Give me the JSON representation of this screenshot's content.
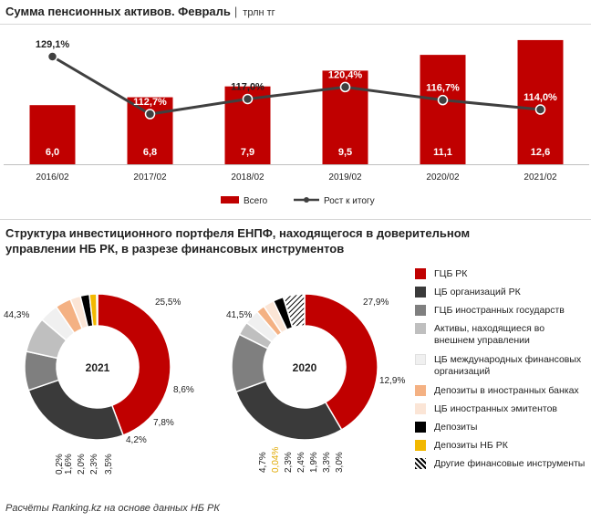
{
  "header": {
    "title": "Сумма пенсионных активов. Февраль",
    "separator": "|",
    "unit": "трлн тг"
  },
  "section2": {
    "title": "Структура инвестиционного портфеля ЕНПФ, находящегося в доверительном управлении НБ РК, в разрезе финансовых инструментов"
  },
  "footnote": "Расчёты Ranking.kz на основе данных НБ РК",
  "colors": {
    "bar": "#c00000",
    "line": "#404040",
    "gray_dark": "#3a3a3a",
    "gray_mid": "#7f7f7f",
    "gray_light": "#bfbfbf",
    "gray_faint": "#f0f0f0",
    "peach": "#f4b183",
    "peach_light": "#fbe5d6",
    "black": "#000000",
    "gold": "#f2b800"
  },
  "chart_data": [
    {
      "type": "bar",
      "categories": [
        "2016/02",
        "2017/02",
        "2018/02",
        "2019/02",
        "2020/02",
        "2021/02"
      ],
      "series": [
        {
          "name": "Всего",
          "type": "bar",
          "values": [
            6.0,
            6.8,
            7.9,
            9.5,
            11.1,
            12.6
          ],
          "labels": [
            "6,0",
            "6,8",
            "7,9",
            "9,5",
            "11,1",
            "12,6"
          ]
        },
        {
          "name": "Рост к итогу",
          "type": "line",
          "values": [
            129.1,
            112.7,
            117.0,
            120.4,
            116.7,
            114.0
          ],
          "labels": [
            "129,1%",
            "112,7%",
            "117,0%",
            "120,4%",
            "116,7%",
            "114,0%"
          ]
        }
      ],
      "legend": "bottom",
      "grid": false
    },
    {
      "type": "pie",
      "subtype": "donut",
      "center_label": "2021",
      "categories": [
        "ГЦБ РК",
        "ЦБ организаций РК",
        "ГЦБ иностранных государств",
        "Активы, находящиеся во внешнем управлении",
        "ЦБ международных финансовых организаций",
        "Депозиты в иностранных банках",
        "ЦБ иностранных эмитентов",
        "Депозиты",
        "Депозиты НБ РК",
        "Другие финансовые инструменты"
      ],
      "values": [
        44.3,
        25.5,
        8.6,
        7.8,
        4.2,
        3.5,
        2.3,
        2.0,
        1.6,
        0.2
      ],
      "labels": [
        "44,3%",
        "25,5%",
        "8,6%",
        "7,8%",
        "4,2%",
        "3,5%",
        "2,3%",
        "2,0%",
        "1,6%",
        "0,2%"
      ]
    },
    {
      "type": "pie",
      "subtype": "donut",
      "center_label": "2020",
      "categories": [
        "ГЦБ РК",
        "ЦБ организаций РК",
        "ГЦБ иностранных государств",
        "Активы, находящиеся во внешнем управлении",
        "ЦБ международных финансовых организаций",
        "Депозиты в иностранных банках",
        "ЦБ иностранных эмитентов",
        "Депозиты",
        "Депозиты НБ РК",
        "Другие финансовые инструменты"
      ],
      "values": [
        41.5,
        27.9,
        12.9,
        3.0,
        3.3,
        1.9,
        2.4,
        2.3,
        0.04,
        4.7
      ],
      "labels": [
        "41,5%",
        "27,9%",
        "12,9%",
        "3,0%",
        "3,3%",
        "1,9%",
        "2,4%",
        "2,3%",
        "0,04%",
        "4,7%"
      ]
    }
  ],
  "pie_legend": [
    {
      "label": "ГЦБ РК",
      "color": "#c00000",
      "pattern": "solid"
    },
    {
      "label": "ЦБ организаций РК",
      "color": "#3a3a3a",
      "pattern": "solid"
    },
    {
      "label": "ГЦБ иностранных государств",
      "color": "#7f7f7f",
      "pattern": "solid"
    },
    {
      "label": "Активы, находящиеся во внешнем управлении",
      "color": "#bfbfbf",
      "pattern": "solid"
    },
    {
      "label": "ЦБ международных финансовых организаций",
      "color": "#f0f0f0",
      "pattern": "solid"
    },
    {
      "label": "Депозиты в иностранных банках",
      "color": "#f4b183",
      "pattern": "solid"
    },
    {
      "label": "ЦБ иностранных эмитентов",
      "color": "#fbe5d6",
      "pattern": "solid"
    },
    {
      "label": "Депозиты",
      "color": "#000000",
      "pattern": "solid"
    },
    {
      "label": "Депозиты НБ РК",
      "color": "#f2b800",
      "pattern": "solid"
    },
    {
      "label": "Другие финансовые инструменты",
      "color": "#ffffff",
      "pattern": "hatch"
    }
  ]
}
